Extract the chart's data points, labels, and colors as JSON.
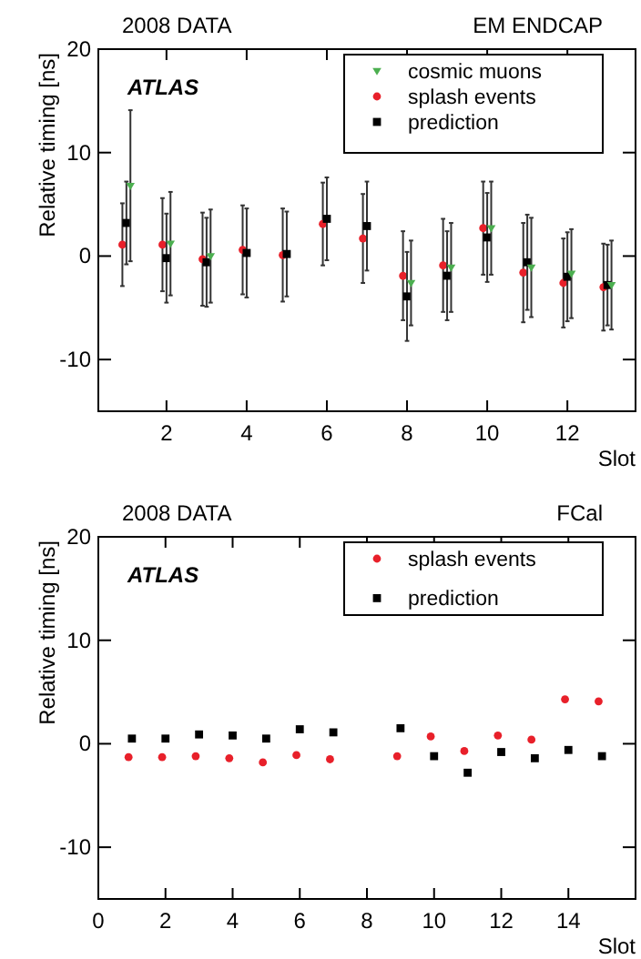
{
  "chart_data": [
    {
      "type": "scatter",
      "annotations": [
        "2008 DATA",
        "EM ENDCAP",
        "ATLAS"
      ],
      "xlabel": "Slot",
      "ylabel": "Relative timing [ns]",
      "xlim": [
        0.3,
        13.7
      ],
      "ylim": [
        -15,
        20
      ],
      "xticks": [
        2,
        4,
        6,
        8,
        10,
        12
      ],
      "yticks": [
        -10,
        0,
        10,
        20
      ],
      "grid": false,
      "legend": "top right",
      "series": [
        {
          "name": "cosmic muons",
          "color": "#4caf50",
          "marker": "triangle",
          "x": [
            1.1,
            2.1,
            3.1,
            8.1,
            9.1,
            10.1,
            11.1,
            12.1,
            13.1
          ],
          "values": [
            6.8,
            1.2,
            0.0,
            -2.6,
            -1.1,
            2.7,
            -1.1,
            -1.7,
            -2.8
          ],
          "errors": [
            7.3,
            5,
            4.5,
            4.1,
            4.3,
            4.5,
            4.8,
            4.3,
            4.3
          ]
        },
        {
          "name": "splash events",
          "color": "#e8202a",
          "marker": "circle",
          "x": [
            0.9,
            1.9,
            2.9,
            3.9,
            4.9,
            5.9,
            6.9,
            7.9,
            8.9,
            9.9,
            10.9,
            11.9,
            12.9
          ],
          "values": [
            1.1,
            1.1,
            -0.3,
            0.6,
            0.1,
            3.1,
            1.7,
            -1.9,
            -0.9,
            2.7,
            -1.6,
            -2.6,
            -3.0
          ],
          "errors": [
            4,
            4.5,
            4.5,
            4.3,
            4.5,
            4,
            4.3,
            4.3,
            4.5,
            4.5,
            4.8,
            4.3,
            4.2
          ]
        },
        {
          "name": "prediction",
          "color": "#000000",
          "marker": "square",
          "x": [
            1,
            2,
            3,
            4,
            5,
            6,
            7,
            8,
            9,
            10,
            11,
            12,
            13
          ],
          "values": [
            3.2,
            -0.2,
            -0.6,
            0.3,
            0.2,
            3.6,
            2.9,
            -3.9,
            -1.9,
            1.8,
            -0.6,
            -2.0,
            -2.8
          ],
          "errors": [
            4,
            4.3,
            4.3,
            4.3,
            4.1,
            4,
            4.3,
            4.3,
            4.3,
            4.3,
            4.6,
            4.3,
            3.9
          ]
        }
      ]
    },
    {
      "type": "scatter",
      "annotations": [
        "2008 DATA",
        "FCal",
        "ATLAS"
      ],
      "xlabel": "Slot",
      "ylabel": "Relative timing [ns]",
      "xlim": [
        0,
        16
      ],
      "ylim": [
        -15,
        20
      ],
      "xticks": [
        0,
        2,
        4,
        6,
        8,
        10,
        12,
        14
      ],
      "yticks": [
        -10,
        0,
        10,
        20
      ],
      "grid": false,
      "legend": "top right",
      "series": [
        {
          "name": "splash events",
          "color": "#e8202a",
          "marker": "circle",
          "x": [
            0.9,
            1.9,
            2.9,
            3.9,
            4.9,
            5.9,
            6.9,
            8.9,
            9.9,
            10.9,
            11.9,
            12.9,
            13.9,
            14.9
          ],
          "values": [
            -1.3,
            -1.3,
            -1.2,
            -1.4,
            -1.8,
            -1.1,
            -1.5,
            -1.2,
            0.7,
            -0.7,
            0.8,
            0.4,
            4.3,
            4.1
          ]
        },
        {
          "name": "prediction",
          "color": "#000000",
          "marker": "square",
          "x": [
            1,
            2,
            3,
            4,
            5,
            6,
            7,
            9,
            10,
            11,
            12,
            13,
            14,
            15
          ],
          "values": [
            0.5,
            0.5,
            0.9,
            0.8,
            0.5,
            1.4,
            1.1,
            1.5,
            -1.2,
            -2.8,
            -0.8,
            -1.4,
            -0.6,
            -1.2
          ]
        }
      ]
    }
  ]
}
